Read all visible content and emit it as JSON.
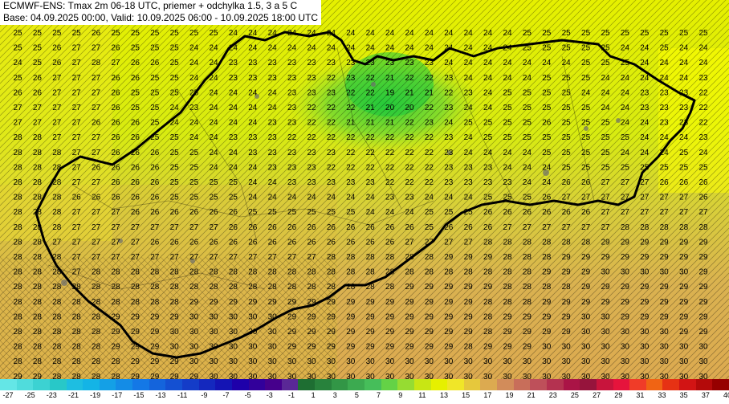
{
  "header": {
    "line1": "ECMWF-ENS: Tmax 2m 06-18 UTC, priemer + odchylka 1.5, 3 a 5 C",
    "line2": "Base: 04.09.2025 00:00, Valid: 10.09.2025 06:00 - 10.09.2025 18:00 UTC"
  },
  "grid_values": [
    [
      25,
      25,
      25,
      25,
      26,
      25,
      25,
      25,
      25,
      25,
      25,
      24,
      24,
      24,
      24,
      24,
      24,
      24,
      24,
      24,
      24,
      24,
      24,
      24,
      24,
      24,
      25,
      25,
      25,
      25,
      25,
      25,
      25,
      25,
      25,
      25
    ],
    [
      25,
      25,
      26,
      27,
      27,
      26,
      25,
      25,
      25,
      24,
      24,
      24,
      24,
      24,
      24,
      24,
      24,
      24,
      24,
      24,
      24,
      24,
      24,
      24,
      24,
      24,
      25,
      25,
      25,
      25,
      25,
      24,
      24,
      25,
      24,
      24
    ],
    [
      24,
      25,
      26,
      27,
      28,
      27,
      26,
      26,
      25,
      24,
      24,
      23,
      23,
      23,
      23,
      23,
      23,
      23,
      23,
      23,
      23,
      23,
      24,
      24,
      24,
      24,
      24,
      24,
      24,
      25,
      25,
      25,
      24,
      24,
      24,
      24
    ],
    [
      25,
      26,
      27,
      27,
      27,
      26,
      26,
      25,
      25,
      24,
      24,
      23,
      23,
      23,
      23,
      23,
      22,
      23,
      22,
      21,
      22,
      22,
      23,
      24,
      24,
      24,
      24,
      25,
      25,
      25,
      24,
      24,
      24,
      24,
      24,
      23
    ],
    [
      26,
      26,
      27,
      27,
      27,
      26,
      25,
      25,
      25,
      25,
      24,
      24,
      24,
      24,
      23,
      23,
      23,
      22,
      22,
      19,
      21,
      21,
      22,
      23,
      24,
      25,
      25,
      25,
      25,
      24,
      24,
      24,
      23,
      23,
      23,
      22
    ],
    [
      27,
      27,
      27,
      27,
      27,
      26,
      25,
      25,
      24,
      23,
      24,
      24,
      24,
      24,
      23,
      22,
      22,
      22,
      21,
      20,
      20,
      22,
      23,
      24,
      24,
      25,
      25,
      25,
      25,
      25,
      24,
      24,
      23,
      23,
      23,
      22
    ],
    [
      27,
      27,
      27,
      27,
      26,
      26,
      26,
      25,
      24,
      24,
      24,
      24,
      24,
      23,
      23,
      22,
      22,
      21,
      21,
      21,
      22,
      23,
      24,
      25,
      25,
      25,
      25,
      26,
      25,
      25,
      25,
      24,
      24,
      23,
      23,
      22
    ],
    [
      28,
      28,
      27,
      27,
      27,
      26,
      26,
      25,
      25,
      24,
      24,
      23,
      23,
      23,
      22,
      22,
      22,
      22,
      22,
      22,
      22,
      22,
      23,
      24,
      25,
      25,
      25,
      25,
      25,
      25,
      25,
      25,
      24,
      24,
      24,
      23
    ],
    [
      28,
      28,
      28,
      27,
      27,
      26,
      26,
      26,
      25,
      25,
      24,
      24,
      23,
      23,
      23,
      23,
      23,
      22,
      22,
      22,
      22,
      22,
      23,
      24,
      24,
      24,
      24,
      25,
      25,
      25,
      25,
      24,
      24,
      24,
      25,
      24
    ],
    [
      28,
      28,
      28,
      27,
      26,
      26,
      26,
      26,
      25,
      25,
      24,
      24,
      24,
      23,
      23,
      23,
      22,
      22,
      22,
      22,
      22,
      22,
      23,
      23,
      23,
      24,
      24,
      24,
      25,
      25,
      25,
      25,
      25,
      25,
      25,
      25
    ],
    [
      28,
      28,
      28,
      27,
      27,
      26,
      26,
      26,
      25,
      25,
      25,
      25,
      24,
      24,
      23,
      23,
      23,
      23,
      23,
      22,
      22,
      22,
      23,
      23,
      23,
      23,
      24,
      24,
      26,
      26,
      27,
      27,
      27,
      26,
      26,
      26
    ],
    [
      28,
      28,
      28,
      26,
      26,
      26,
      26,
      26,
      25,
      25,
      25,
      25,
      24,
      24,
      24,
      24,
      24,
      24,
      24,
      23,
      23,
      24,
      24,
      24,
      25,
      25,
      25,
      26,
      27,
      27,
      27,
      27,
      27,
      27,
      27,
      26
    ],
    [
      28,
      28,
      28,
      27,
      27,
      27,
      26,
      26,
      26,
      26,
      26,
      26,
      25,
      25,
      25,
      25,
      25,
      25,
      24,
      24,
      24,
      25,
      25,
      25,
      26,
      26,
      26,
      26,
      26,
      26,
      27,
      27,
      27,
      27,
      27,
      27
    ],
    [
      28,
      28,
      28,
      27,
      27,
      27,
      27,
      27,
      27,
      27,
      27,
      26,
      26,
      26,
      26,
      26,
      26,
      26,
      26,
      26,
      26,
      25,
      26,
      26,
      26,
      27,
      27,
      27,
      27,
      27,
      27,
      28,
      28,
      28,
      28,
      28
    ],
    [
      28,
      28,
      27,
      27,
      27,
      27,
      27,
      26,
      26,
      26,
      26,
      26,
      26,
      26,
      26,
      26,
      26,
      26,
      26,
      26,
      27,
      27,
      27,
      27,
      28,
      28,
      28,
      28,
      28,
      28,
      29,
      29,
      29,
      29,
      29,
      29
    ],
    [
      28,
      28,
      28,
      27,
      27,
      27,
      27,
      27,
      27,
      27,
      27,
      27,
      27,
      27,
      27,
      27,
      28,
      28,
      28,
      28,
      28,
      28,
      29,
      29,
      29,
      28,
      28,
      28,
      29,
      29,
      29,
      29,
      29,
      29,
      29,
      29
    ],
    [
      28,
      28,
      28,
      27,
      28,
      28,
      28,
      28,
      28,
      28,
      28,
      28,
      28,
      28,
      28,
      28,
      28,
      28,
      28,
      28,
      28,
      28,
      28,
      28,
      28,
      28,
      28,
      29,
      29,
      29,
      30,
      30,
      30,
      30,
      30,
      29
    ],
    [
      28,
      28,
      28,
      28,
      28,
      28,
      28,
      28,
      28,
      28,
      28,
      28,
      28,
      28,
      28,
      28,
      28,
      28,
      28,
      28,
      29,
      29,
      29,
      29,
      29,
      28,
      28,
      28,
      28,
      29,
      29,
      29,
      29,
      29,
      29,
      29
    ],
    [
      28,
      28,
      28,
      28,
      28,
      28,
      28,
      28,
      28,
      29,
      29,
      29,
      29,
      29,
      29,
      29,
      29,
      29,
      29,
      29,
      29,
      29,
      29,
      29,
      28,
      28,
      28,
      29,
      29,
      29,
      29,
      29,
      29,
      29,
      29,
      29
    ],
    [
      28,
      28,
      28,
      28,
      28,
      29,
      29,
      29,
      29,
      30,
      30,
      30,
      30,
      30,
      29,
      29,
      29,
      29,
      29,
      29,
      29,
      29,
      29,
      29,
      28,
      29,
      29,
      29,
      29,
      30,
      30,
      29,
      29,
      29,
      29,
      29
    ],
    [
      28,
      28,
      28,
      28,
      28,
      29,
      29,
      29,
      30,
      30,
      30,
      30,
      30,
      30,
      29,
      29,
      29,
      29,
      29,
      29,
      29,
      29,
      29,
      29,
      28,
      29,
      29,
      29,
      29,
      30,
      30,
      30,
      30,
      30,
      29,
      29
    ],
    [
      28,
      28,
      28,
      28,
      28,
      29,
      29,
      29,
      30,
      30,
      30,
      30,
      30,
      30,
      29,
      29,
      29,
      29,
      29,
      29,
      29,
      29,
      29,
      28,
      29,
      29,
      29,
      30,
      30,
      30,
      30,
      30,
      30,
      30,
      30,
      30
    ],
    [
      28,
      28,
      28,
      28,
      28,
      28,
      29,
      29,
      29,
      30,
      30,
      30,
      30,
      30,
      30,
      30,
      30,
      30,
      30,
      30,
      30,
      30,
      30,
      30,
      30,
      30,
      30,
      30,
      30,
      30,
      30,
      30,
      30,
      30,
      30,
      30
    ],
    [
      29,
      29,
      28,
      28,
      28,
      28,
      29,
      29,
      29,
      29,
      30,
      30,
      30,
      30,
      30,
      30,
      30,
      30,
      30,
      30,
      30,
      30,
      30,
      30,
      30,
      30,
      30,
      30,
      30,
      30,
      30,
      30,
      30,
      30,
      30,
      30
    ]
  ],
  "colorbar": {
    "labels": [
      "-27",
      "-25",
      "-23",
      "-21",
      "-19",
      "-17",
      "-15",
      "-13",
      "-11",
      "-9",
      "-7",
      "-5",
      "-3",
      "-1",
      "1",
      "3",
      "5",
      "7",
      "9",
      "11",
      "13",
      "15",
      "17",
      "19",
      "21",
      "23",
      "25",
      "27",
      "29",
      "31",
      "33",
      "35",
      "37",
      "40"
    ],
    "colors": [
      "#64e6e6",
      "#50dcdc",
      "#3cd2d2",
      "#28c8c8",
      "#1ebee1",
      "#14b4e6",
      "#14a0e6",
      "#148ce6",
      "#1478e6",
      "#1464dc",
      "#1450d2",
      "#143cc8",
      "#1428be",
      "#1414b4",
      "#1e00aa",
      "#32009b",
      "#46008c",
      "#5a2896",
      "#1e6e32",
      "#28823c",
      "#329646",
      "#3caa50",
      "#46be5a",
      "#64d246",
      "#96dc32",
      "#c8e614",
      "#e6f000",
      "#f0e628",
      "#e6c83c",
      "#dcaa50",
      "#d28c5a",
      "#c86e5a",
      "#be505a",
      "#b43250",
      "#aa1446",
      "#96143c",
      "#c8143c",
      "#e6143c",
      "#f03c28",
      "#f06414",
      "#e63214",
      "#d21414",
      "#b40a0a",
      "#960000"
    ]
  }
}
